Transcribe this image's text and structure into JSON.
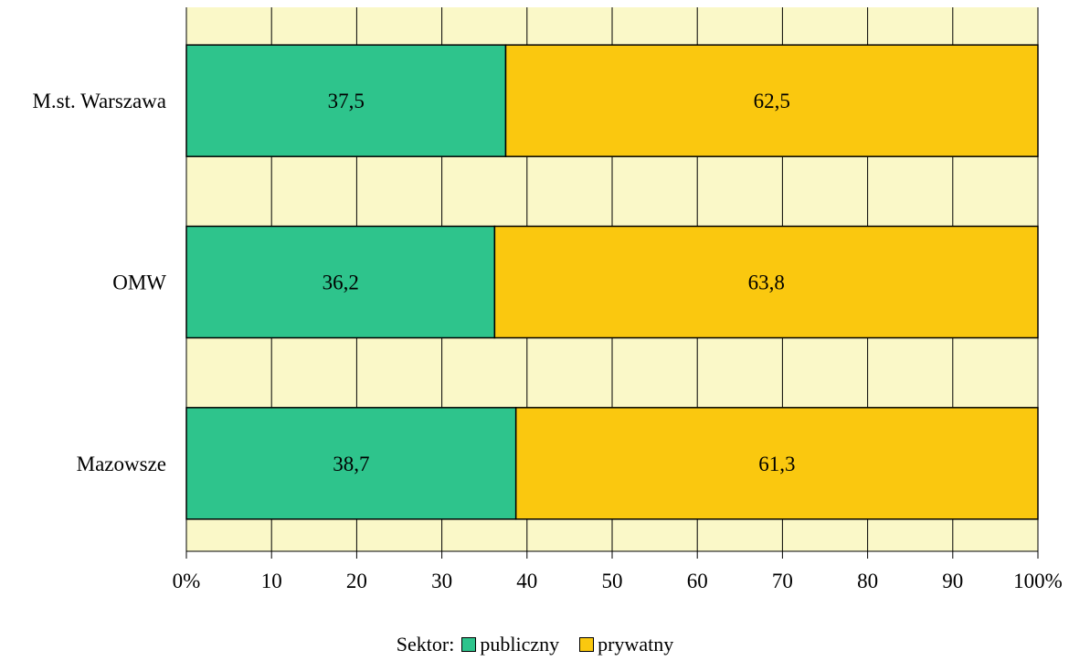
{
  "chart_data": {
    "type": "bar",
    "orientation": "horizontal",
    "stacked": true,
    "categories": [
      "M.st. Warszawa",
      "OMW",
      "Mazowsze"
    ],
    "series": [
      {
        "name": "publiczny",
        "values": [
          37.5,
          36.2,
          38.7
        ],
        "color": "#2EC48C",
        "labels": [
          "37,5",
          "36,2",
          "38,7"
        ]
      },
      {
        "name": "prywatny",
        "values": [
          62.5,
          63.8,
          61.3
        ],
        "color": "#FAC80F",
        "labels": [
          "62,5",
          "63,8",
          "61,3"
        ]
      }
    ],
    "xlim": [
      0,
      100
    ],
    "x_ticks": [
      "0%",
      "10",
      "20",
      "30",
      "40",
      "50",
      "60",
      "70",
      "80",
      "90",
      "100%"
    ],
    "grid": true,
    "plot_background": "#FAF8C8",
    "legend_position": "bottom",
    "legend_title": "Sektor:"
  }
}
